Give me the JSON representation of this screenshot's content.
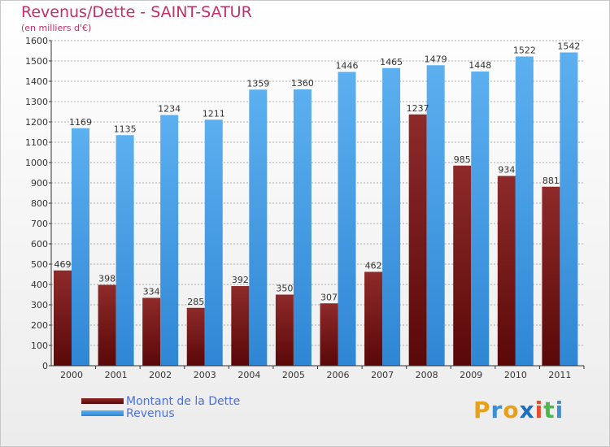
{
  "colors": {
    "title": "#c0306a",
    "dette": "#7a1c1c",
    "revenus": "#4a9fe6",
    "axis": "#333333",
    "grid": "#a9a9a9",
    "legend_text": "#4a6fe0"
  },
  "brand": {
    "letters": [
      "P",
      "r",
      "o",
      "x",
      "i",
      "t",
      "i"
    ],
    "letter_colors": [
      "#e8a019",
      "#3b8fd6",
      "#e8a019",
      "#1f6fc0",
      "#e84c2c",
      "#4cb84c",
      "#3b8fd6"
    ]
  },
  "chart_data": {
    "type": "bar",
    "title": "Revenus/Dette - SAINT-SATUR",
    "subtitle": "(en milliers d'€)",
    "categories": [
      "2000",
      "2001",
      "2002",
      "2003",
      "2004",
      "2005",
      "2006",
      "2007",
      "2008",
      "2009",
      "2010",
      "2011"
    ],
    "series": [
      {
        "name": "Montant de la Dette",
        "values": [
          469,
          398,
          334,
          285,
          392,
          350,
          307,
          462,
          1237,
          985,
          934,
          881
        ]
      },
      {
        "name": "Revenus",
        "values": [
          1169,
          1135,
          1234,
          1211,
          1359,
          1360,
          1446,
          1465,
          1479,
          1448,
          1522,
          1542
        ]
      }
    ],
    "ylim": [
      0,
      1600
    ],
    "yticks": [
      0,
      100,
      200,
      300,
      400,
      500,
      600,
      700,
      800,
      900,
      1000,
      1100,
      1200,
      1300,
      1400,
      1500,
      1600
    ],
    "grid": true,
    "legend_position": "bottom-left",
    "xlabel": "",
    "ylabel": ""
  }
}
